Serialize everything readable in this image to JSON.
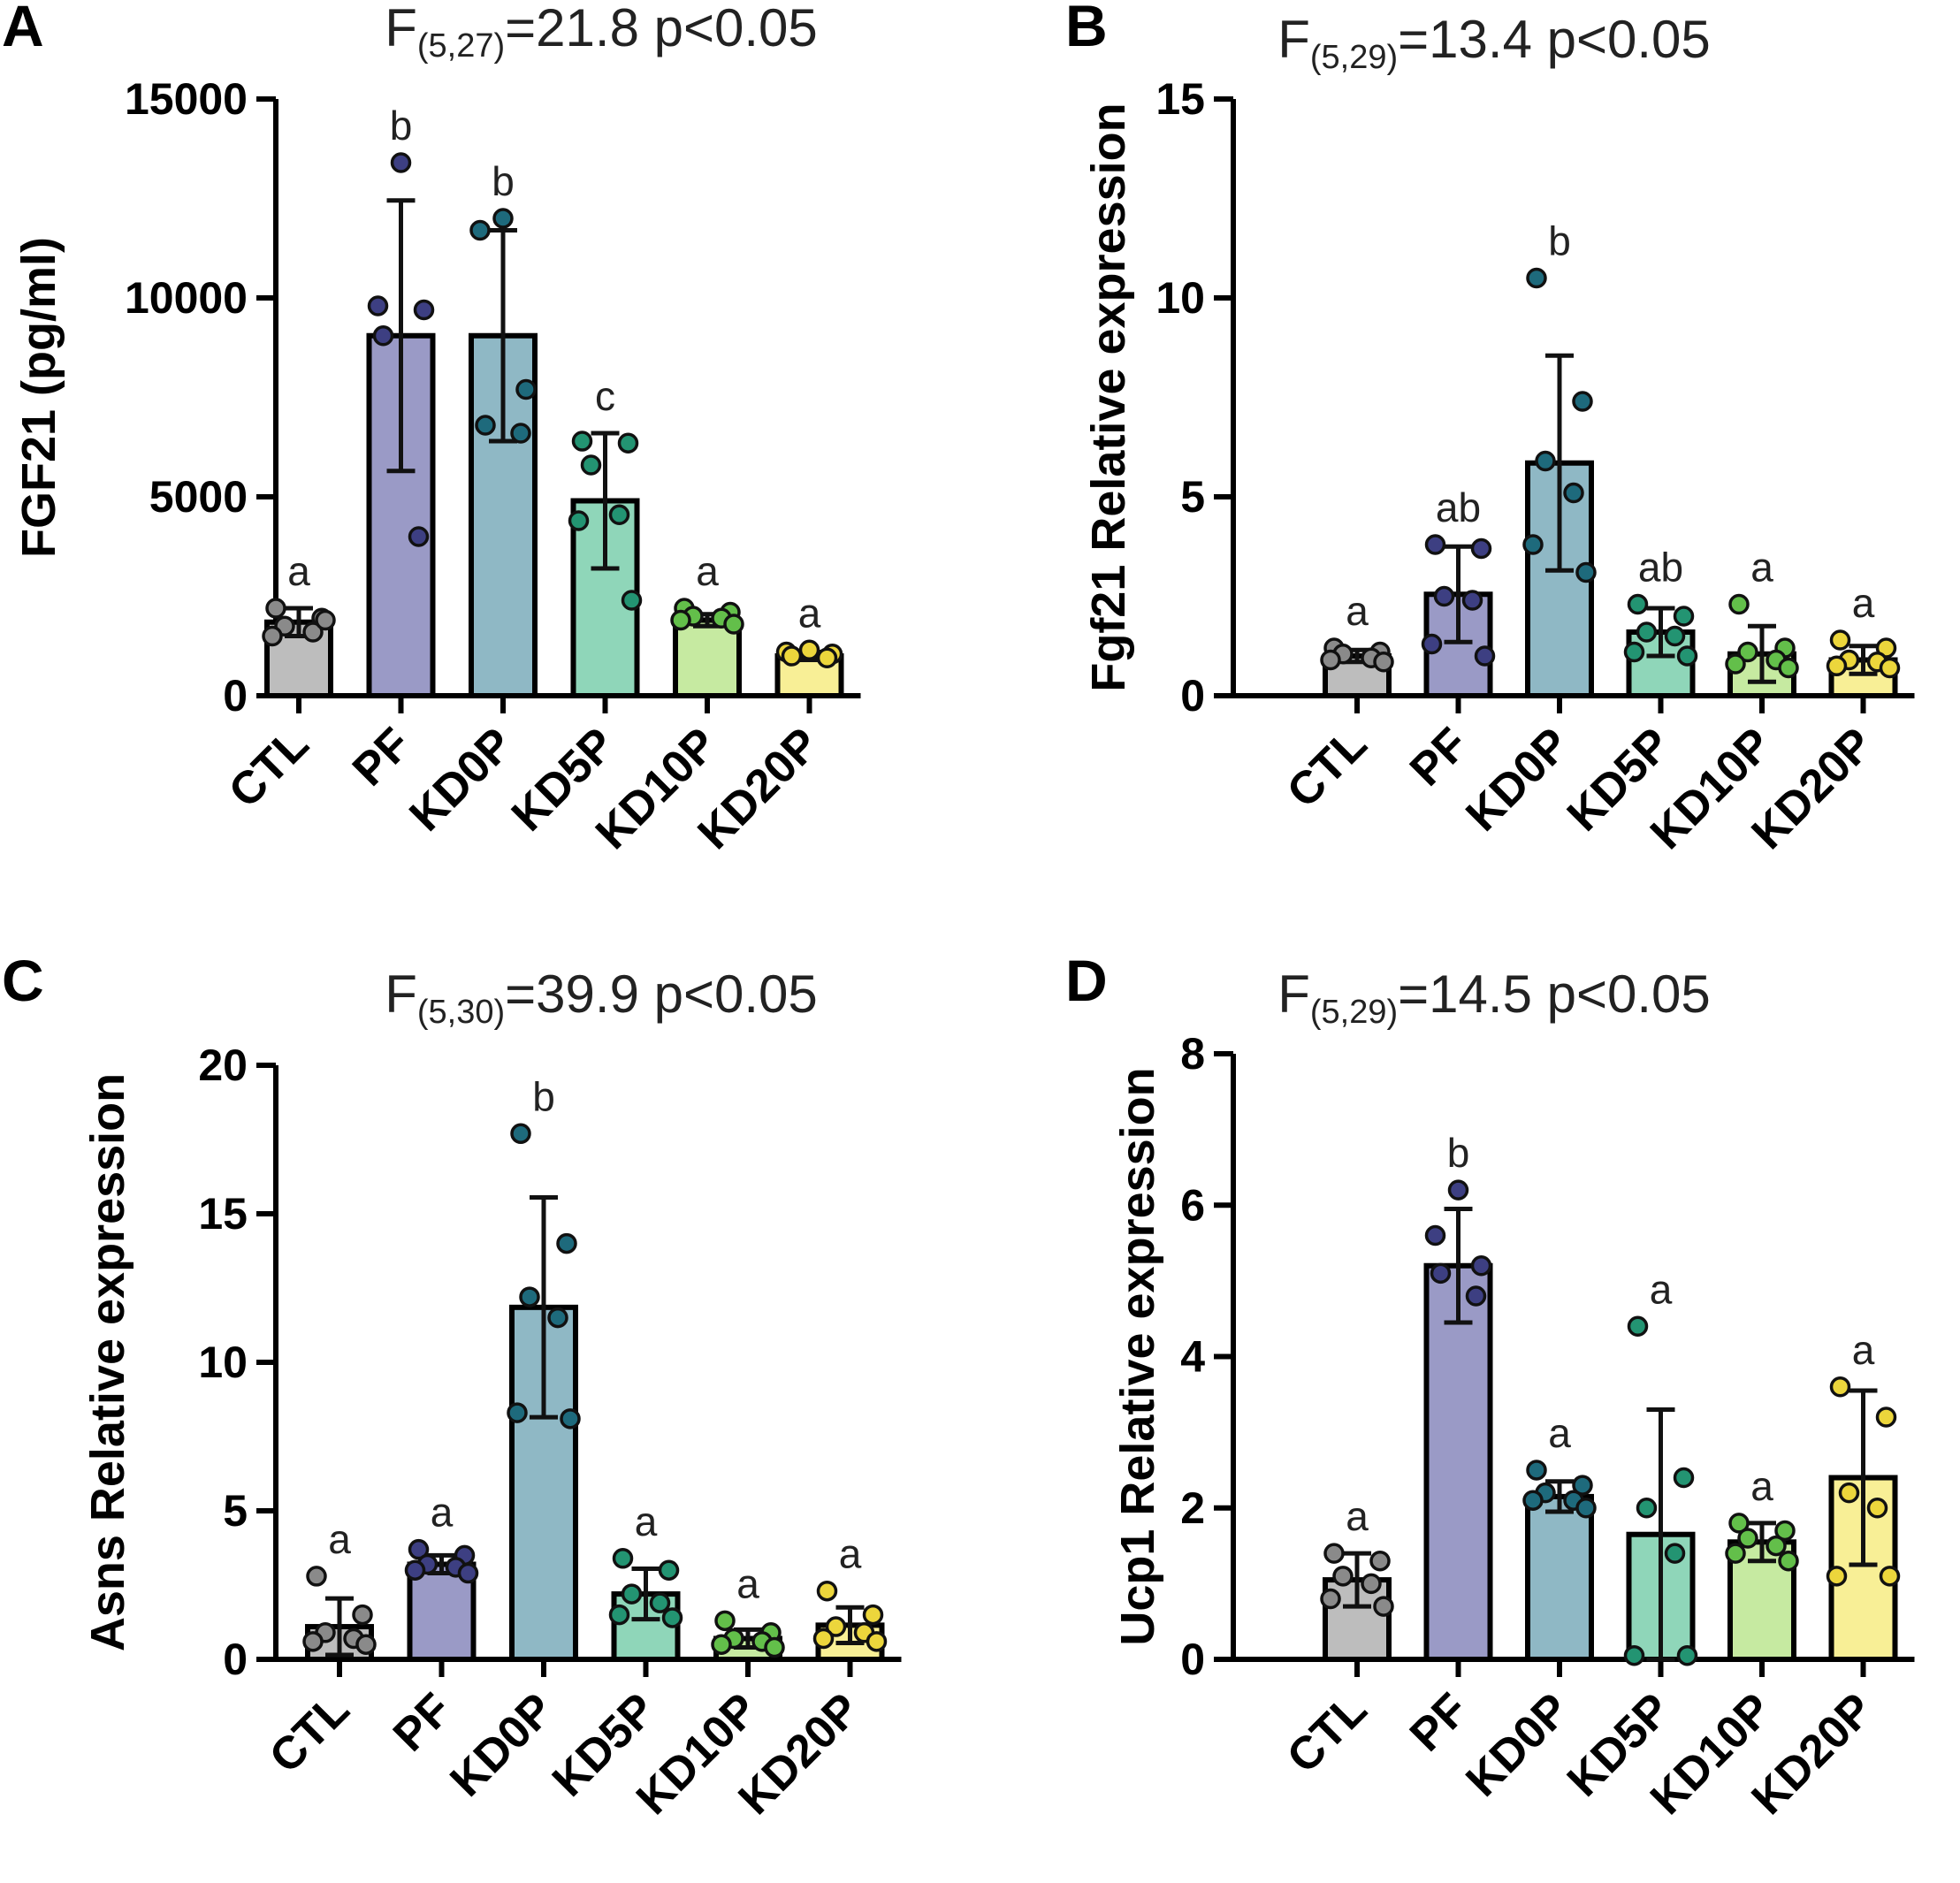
{
  "chart_data": [
    {
      "panel": "A",
      "type": "bar",
      "stat": {
        "prefix": "F",
        "df": "(5,27)",
        "rest": "=21.8 p<0.05"
      },
      "ylabel": "FGF21 (pg/ml)",
      "ylim": [
        0,
        15000
      ],
      "yticks": [
        0,
        5000,
        10000,
        15000
      ],
      "categories": [
        "CTL",
        "PF",
        "KD0P",
        "KD5P",
        "KD10P",
        "KD20P"
      ],
      "colors": [
        "#bdbdbd",
        "#9a9ac6",
        "#8fb8c5",
        "#8fd6b9",
        "#c6eaa1",
        "#f8ef96"
      ],
      "dot_colors": [
        "#8a8a8a",
        "#3d3f82",
        "#1e6a7c",
        "#239472",
        "#63bf4a",
        "#ecd63c"
      ],
      "values": [
        1850,
        9050,
        9050,
        4900,
        1900,
        1000
      ],
      "sd": [
        350,
        3400,
        2650,
        1700,
        150,
        100
      ],
      "points": [
        [
          2200,
          1950,
          1750,
          1600,
          1500,
          1900
        ],
        [
          13400,
          9800,
          9700,
          9050,
          4000
        ],
        [
          12000,
          11700,
          7700,
          6800,
          6600
        ],
        [
          6400,
          6350,
          5800,
          4550,
          4400,
          2400
        ],
        [
          2200,
          2100,
          2000,
          1950,
          1900,
          1800
        ],
        [
          1150,
          1100,
          1050,
          1000,
          950
        ]
      ],
      "letters": [
        "a",
        "b",
        "b",
        "c",
        "a",
        "a"
      ]
    },
    {
      "panel": "B",
      "type": "bar",
      "stat": {
        "prefix": "F",
        "df": "(5,29)",
        "rest": "=13.4 p<0.05"
      },
      "ylabel": "Fgf21 Relative expression",
      "ylim": [
        0,
        15
      ],
      "yticks": [
        0,
        5,
        10,
        15
      ],
      "categories": [
        "CTL",
        "PF",
        "KD0P",
        "KD5P",
        "KD10P",
        "KD20P"
      ],
      "colors": [
        "#bdbdbd",
        "#9a9ac6",
        "#8fb8c5",
        "#8fd6b9",
        "#c6eaa1",
        "#f8ef96"
      ],
      "dot_colors": [
        "#8a8a8a",
        "#3d3f82",
        "#1e6a7c",
        "#239472",
        "#63bf4a",
        "#ecd63c"
      ],
      "values": [
        1.0,
        2.55,
        5.85,
        1.6,
        1.05,
        0.9
      ],
      "sd": [
        0.15,
        1.2,
        2.7,
        0.6,
        0.7,
        0.35
      ],
      "points": [
        [
          1.2,
          1.1,
          1.05,
          0.95,
          0.9,
          0.85
        ],
        [
          3.8,
          3.7,
          2.5,
          2.4,
          1.3,
          1.0
        ],
        [
          10.5,
          7.4,
          5.9,
          5.1,
          3.8,
          3.1
        ],
        [
          2.3,
          2.0,
          1.6,
          1.5,
          1.1,
          1.0
        ],
        [
          2.3,
          1.2,
          1.1,
          0.9,
          0.8,
          0.7
        ],
        [
          1.4,
          1.2,
          0.9,
          0.85,
          0.75,
          0.7
        ]
      ],
      "letters": [
        "a",
        "ab",
        "b",
        "ab",
        "a",
        "a"
      ]
    },
    {
      "panel": "C",
      "type": "bar",
      "stat": {
        "prefix": "F",
        "df": "(5,30)",
        "rest": "=39.9 p<0.05"
      },
      "ylabel": "Asns Relative expression",
      "ylim": [
        0,
        20
      ],
      "yticks": [
        0,
        5,
        10,
        15,
        20
      ],
      "categories": [
        "CTL",
        "PF",
        "KD0P",
        "KD5P",
        "KD10P",
        "KD20P"
      ],
      "colors": [
        "#bdbdbd",
        "#9a9ac6",
        "#8fb8c5",
        "#8fd6b9",
        "#c6eaa1",
        "#f8ef96"
      ],
      "dot_colors": [
        "#8a8a8a",
        "#3d3f82",
        "#1e6a7c",
        "#239472",
        "#63bf4a",
        "#ecd63c"
      ],
      "values": [
        1.1,
        3.2,
        11.85,
        2.2,
        0.7,
        1.15
      ],
      "sd": [
        0.95,
        0.3,
        3.7,
        0.85,
        0.3,
        0.6
      ],
      "points": [
        [
          2.8,
          1.5,
          0.9,
          0.7,
          0.6,
          0.5
        ],
        [
          3.7,
          3.5,
          3.2,
          3.1,
          3.0,
          2.9
        ],
        [
          17.7,
          14.0,
          12.2,
          11.5,
          8.3,
          8.1
        ],
        [
          3.4,
          3.0,
          2.2,
          1.9,
          1.5,
          1.4
        ],
        [
          1.3,
          0.9,
          0.7,
          0.6,
          0.5,
          0.4
        ],
        [
          2.3,
          1.5,
          1.1,
          0.9,
          0.7,
          0.6
        ]
      ],
      "letters": [
        "a",
        "a",
        "b",
        "a",
        "a",
        "a"
      ]
    },
    {
      "panel": "D",
      "type": "bar",
      "stat": {
        "prefix": "F",
        "df": "(5,29)",
        "rest": "=14.5 p<0.05"
      },
      "ylabel": "Ucp1 Relative expression",
      "ylim": [
        0,
        8
      ],
      "yticks": [
        0,
        2,
        4,
        6,
        8
      ],
      "categories": [
        "CTL",
        "PF",
        "KD0P",
        "KD5P",
        "KD10P",
        "KD20P"
      ],
      "colors": [
        "#bdbdbd",
        "#9a9ac6",
        "#8fb8c5",
        "#8fd6b9",
        "#c6eaa1",
        "#f8ef96"
      ],
      "dot_colors": [
        "#8a8a8a",
        "#3d3f82",
        "#1e6a7c",
        "#239472",
        "#63bf4a",
        "#ecd63c"
      ],
      "values": [
        1.05,
        5.2,
        2.15,
        1.65,
        1.55,
        2.4
      ],
      "sd": [
        0.35,
        0.75,
        0.2,
        1.65,
        0.25,
        1.15
      ],
      "points": [
        [
          1.4,
          1.3,
          1.1,
          1.0,
          0.8,
          0.7
        ],
        [
          6.2,
          5.6,
          5.2,
          5.1,
          4.8
        ],
        [
          2.5,
          2.3,
          2.2,
          2.1,
          2.1,
          2.0
        ],
        [
          4.4,
          2.4,
          2.0,
          1.4,
          0.05,
          0.05
        ],
        [
          1.8,
          1.7,
          1.6,
          1.5,
          1.4,
          1.3
        ],
        [
          3.6,
          3.2,
          2.2,
          2.0,
          1.1,
          1.1
        ]
      ],
      "letters": [
        "a",
        "b",
        "a",
        "a",
        "a",
        "a"
      ]
    }
  ]
}
